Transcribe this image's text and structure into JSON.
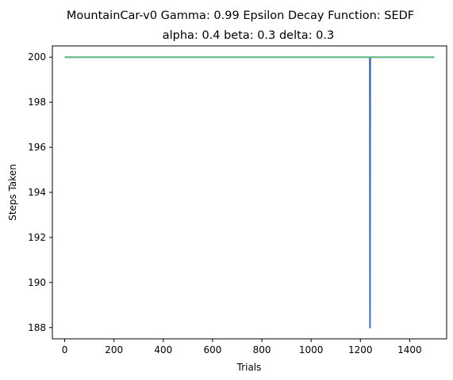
{
  "chart_data": {
    "type": "line",
    "title": "MountainCar-v0 Gamma: 0.99 Epsilon Decay Function: SEDF",
    "subtitle": "alpha: 0.4  beta: 0.3  delta: 0.3",
    "xlabel": "Trials",
    "ylabel": "Steps Taken",
    "xlim": [
      -50,
      1550
    ],
    "ylim": [
      187.5,
      200.5
    ],
    "xticks": [
      0,
      200,
      400,
      600,
      800,
      1000,
      1200,
      1400
    ],
    "yticks": [
      188,
      190,
      192,
      194,
      196,
      198,
      200
    ],
    "grid": false,
    "series": [
      {
        "color": "#3a6fd8",
        "x": [
          0,
          1238,
          1239,
          1240,
          1500
        ],
        "y": [
          200,
          200,
          188,
          200,
          200
        ]
      },
      {
        "color": "#5cc85c",
        "x": [
          0,
          1500
        ],
        "y": [
          200,
          200
        ]
      }
    ]
  }
}
